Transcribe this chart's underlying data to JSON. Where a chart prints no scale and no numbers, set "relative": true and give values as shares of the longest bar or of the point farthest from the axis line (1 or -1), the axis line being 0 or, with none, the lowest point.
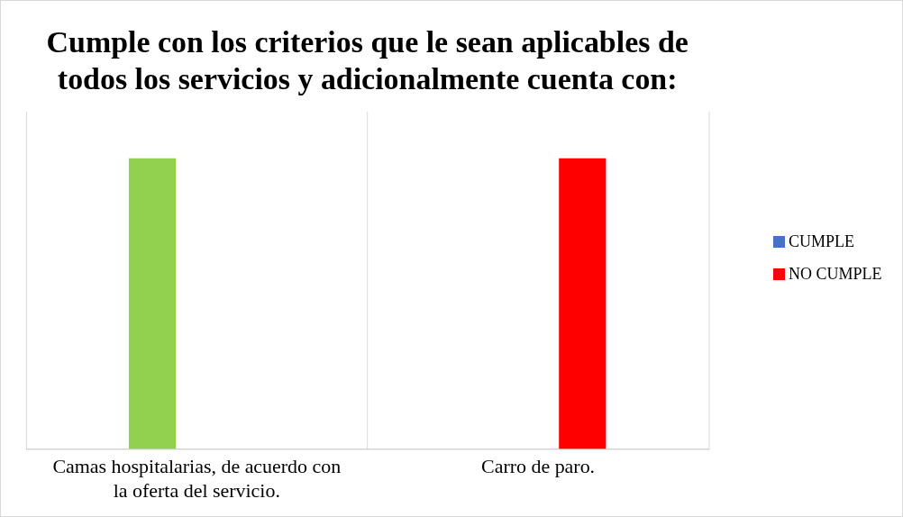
{
  "chart_data": {
    "type": "bar",
    "title": "Cumple con los criterios que le sean aplicables de todos los servicios y adicionalmente cuenta con:",
    "categories": [
      "Camas hospitalarias, de acuerdo con la oferta del servicio.",
      "Carro de paro."
    ],
    "relative": true,
    "grid": "x",
    "legend": "right",
    "series": [
      {
        "name": "CUMPLE",
        "color": "#4472c4",
        "colors": [
          "#92d050",
          null
        ],
        "values": [
          1,
          null
        ]
      },
      {
        "name": "NO CUMPLE",
        "color": "#ff0000",
        "values": [
          null,
          1
        ]
      }
    ]
  }
}
